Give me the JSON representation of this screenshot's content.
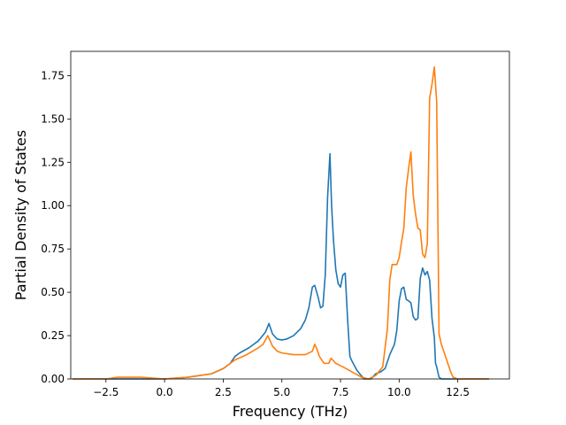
{
  "chart_data": {
    "type": "line",
    "title": "",
    "xlabel": "Frequency (THz)",
    "ylabel": "Partial Density of States",
    "xlim": [
      -4.0,
      14.7
    ],
    "ylim": [
      0,
      1.89
    ],
    "xticks": [
      -2.5,
      0.0,
      2.5,
      5.0,
      7.5,
      10.0,
      12.5
    ],
    "xtick_labels": [
      "−2.5",
      "0.0",
      "2.5",
      "5.0",
      "7.5",
      "10.0",
      "12.5"
    ],
    "yticks": [
      0.0,
      0.25,
      0.5,
      0.75,
      1.0,
      1.25,
      1.5,
      1.75
    ],
    "ytick_labels": [
      "0.00",
      "0.25",
      "0.50",
      "0.75",
      "1.00",
      "1.25",
      "1.50",
      "1.75"
    ],
    "grid": false,
    "legend": "none",
    "series": [
      {
        "color": "#1f77b4",
        "x": [
          -3.9,
          -2.5,
          -1.0,
          0.0,
          1.0,
          2.0,
          2.5,
          2.8,
          3.0,
          3.2,
          3.6,
          4.0,
          4.3,
          4.45,
          4.6,
          4.8,
          5.0,
          5.2,
          5.5,
          5.8,
          6.0,
          6.15,
          6.3,
          6.4,
          6.55,
          6.65,
          6.75,
          6.85,
          6.95,
          7.05,
          7.12,
          7.2,
          7.3,
          7.4,
          7.5,
          7.6,
          7.7,
          7.8,
          7.9,
          8.0,
          8.2,
          8.5,
          8.8,
          9.0,
          9.2,
          9.4,
          9.6,
          9.7,
          9.8,
          9.9,
          10.0,
          10.1,
          10.2,
          10.3,
          10.4,
          10.5,
          10.6,
          10.7,
          10.8,
          10.9,
          11.0,
          11.1,
          11.2,
          11.3,
          11.4,
          11.5,
          11.55,
          11.6,
          11.65,
          11.7,
          11.8,
          12.0,
          12.2,
          12.3,
          12.5,
          13.8
        ],
        "y": [
          0.0,
          0.0,
          0.0,
          0.0,
          0.01,
          0.03,
          0.06,
          0.09,
          0.13,
          0.15,
          0.18,
          0.22,
          0.27,
          0.32,
          0.26,
          0.23,
          0.225,
          0.23,
          0.25,
          0.29,
          0.34,
          0.41,
          0.53,
          0.54,
          0.47,
          0.41,
          0.42,
          0.6,
          1.05,
          1.3,
          1.0,
          0.8,
          0.63,
          0.55,
          0.53,
          0.6,
          0.61,
          0.35,
          0.13,
          0.1,
          0.05,
          0.0,
          0.0,
          0.03,
          0.04,
          0.06,
          0.14,
          0.17,
          0.2,
          0.28,
          0.45,
          0.52,
          0.53,
          0.46,
          0.45,
          0.44,
          0.36,
          0.34,
          0.35,
          0.58,
          0.64,
          0.6,
          0.62,
          0.57,
          0.35,
          0.24,
          0.09,
          0.07,
          0.04,
          0.01,
          0.0,
          0.0,
          0.0,
          0.0,
          0.0,
          0.0
        ]
      },
      {
        "color": "#ff7f0e",
        "x": [
          -3.9,
          -2.5,
          -2.0,
          -1.0,
          0.0,
          1.0,
          2.0,
          2.5,
          3.0,
          3.5,
          4.0,
          4.2,
          4.4,
          4.6,
          4.8,
          5.0,
          5.5,
          6.0,
          6.3,
          6.4,
          6.5,
          6.6,
          6.8,
          7.0,
          7.1,
          7.3,
          7.6,
          8.0,
          8.4,
          8.7,
          9.0,
          9.3,
          9.5,
          9.6,
          9.7,
          9.8,
          9.9,
          10.0,
          10.1,
          10.2,
          10.3,
          10.4,
          10.5,
          10.6,
          10.7,
          10.8,
          10.9,
          11.0,
          11.1,
          11.2,
          11.3,
          11.4,
          11.5,
          11.6,
          11.7,
          11.8,
          11.9,
          12.0,
          12.1,
          12.2,
          12.3,
          12.5,
          13.8
        ],
        "y": [
          0.0,
          0.0,
          0.01,
          0.01,
          0.0,
          0.01,
          0.03,
          0.06,
          0.11,
          0.14,
          0.18,
          0.2,
          0.25,
          0.19,
          0.16,
          0.15,
          0.14,
          0.14,
          0.16,
          0.2,
          0.17,
          0.13,
          0.09,
          0.09,
          0.12,
          0.09,
          0.07,
          0.04,
          0.01,
          0.0,
          0.02,
          0.07,
          0.29,
          0.57,
          0.66,
          0.66,
          0.66,
          0.7,
          0.79,
          0.87,
          1.1,
          1.21,
          1.31,
          1.06,
          0.95,
          0.87,
          0.86,
          0.72,
          0.7,
          0.78,
          1.62,
          1.7,
          1.8,
          1.6,
          0.26,
          0.2,
          0.16,
          0.12,
          0.08,
          0.04,
          0.01,
          0.0,
          0.0
        ]
      }
    ]
  }
}
